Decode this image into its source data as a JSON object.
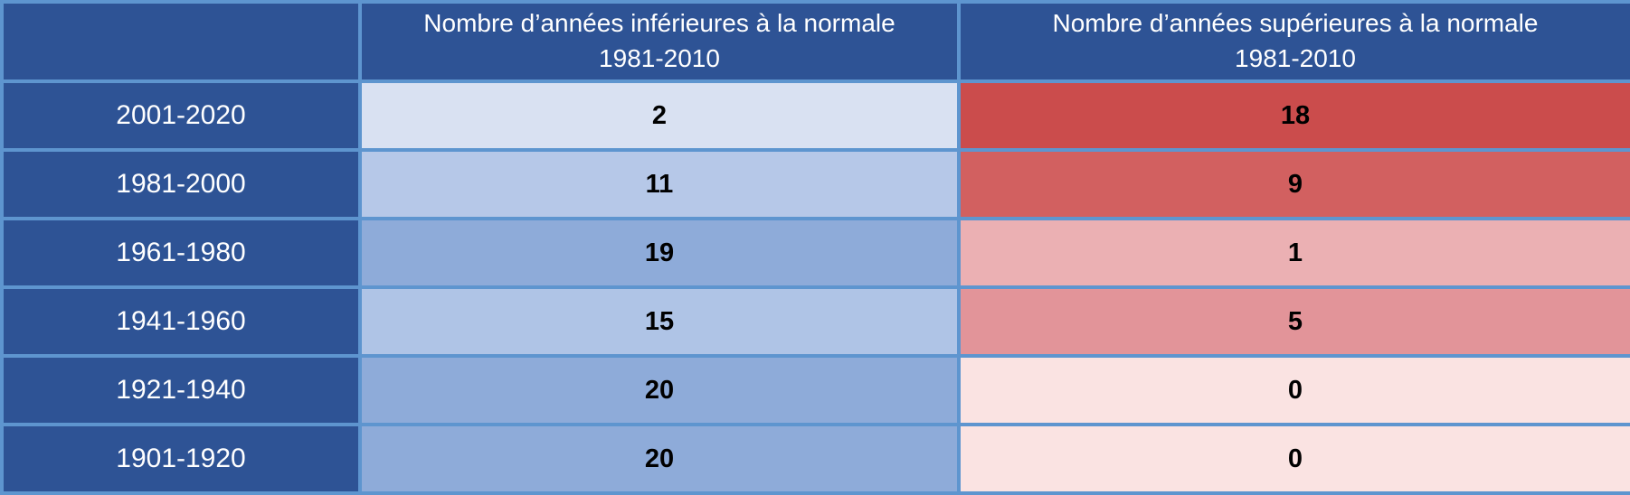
{
  "table": {
    "header": {
      "corner_label": "",
      "below_col_line1": "Nombre d’années inférieures à la normale",
      "below_col_line2": "1981-2010",
      "above_col_line1": "Nombre d’années supérieures à la normale",
      "above_col_line2": "1981-2010"
    },
    "rows": [
      {
        "period": "2001-2020",
        "below": "2",
        "above": "18",
        "below_color": "#D9E1F2",
        "above_color": "#CB4C4C"
      },
      {
        "period": "1981-2000",
        "below": "11",
        "above": "9",
        "below_color": "#B6C8E8",
        "above_color": "#D26060"
      },
      {
        "period": "1961-1980",
        "below": "19",
        "above": "1",
        "below_color": "#8EABD9",
        "above_color": "#EBB0B3"
      },
      {
        "period": "1941-1960",
        "below": "15",
        "above": "5",
        "below_color": "#AFC4E6",
        "above_color": "#E29499"
      },
      {
        "period": "1921-1940",
        "below": "20",
        "above": "0",
        "below_color": "#8EABD9",
        "above_color": "#FAE3E2"
      },
      {
        "period": "1901-1920",
        "below": "20",
        "above": "0",
        "below_color": "#8EABD9",
        "above_color": "#FAE3E2"
      }
    ],
    "colors": {
      "header_background": "#2E5395",
      "border": "#5E95CF",
      "header_text": "#FFFFFF",
      "value_text": "#000000"
    }
  },
  "chart_data": {
    "type": "table",
    "title": "",
    "categories": [
      "2001-2020",
      "1981-2000",
      "1961-1980",
      "1941-1960",
      "1921-1940",
      "1901-1920"
    ],
    "series": [
      {
        "name": "Nombre d’années inférieures à la normale 1981-2010",
        "values": [
          2,
          11,
          19,
          15,
          20,
          20
        ]
      },
      {
        "name": "Nombre d’années supérieures à la normale 1981-2010",
        "values": [
          18,
          9,
          1,
          5,
          0,
          0
        ]
      }
    ],
    "layout_hints": {
      "style": "heatmap-table",
      "below_scale": "white-to-blue, darker blue = more years below normal",
      "above_scale": "white-to-red, darker red = more years above normal",
      "first_column": "20-year periods, most recent on top"
    }
  }
}
